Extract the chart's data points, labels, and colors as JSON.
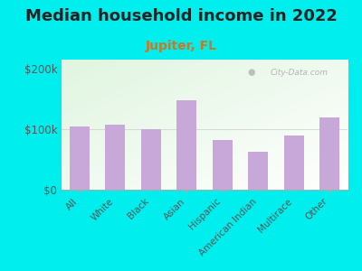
{
  "title": "Median household income in 2022",
  "subtitle": "Jupiter, FL",
  "categories": [
    "All",
    "White",
    "Black",
    "Asian",
    "Hispanic",
    "American Indian",
    "Multirace",
    "Other"
  ],
  "values": [
    105000,
    108000,
    100000,
    148000,
    82000,
    62000,
    90000,
    120000
  ],
  "bar_color": "#c8a8d8",
  "background_outer": "#00eeee",
  "yticks": [
    0,
    100000,
    200000
  ],
  "ytick_labels": [
    "$0",
    "$100k",
    "$200k"
  ],
  "ylim": [
    0,
    215000
  ],
  "title_fontsize": 13,
  "subtitle_fontsize": 10,
  "subtitle_color": "#cc7722",
  "watermark": "City-Data.com",
  "tick_label_color": "#555555",
  "axis_label_color": "#555555"
}
